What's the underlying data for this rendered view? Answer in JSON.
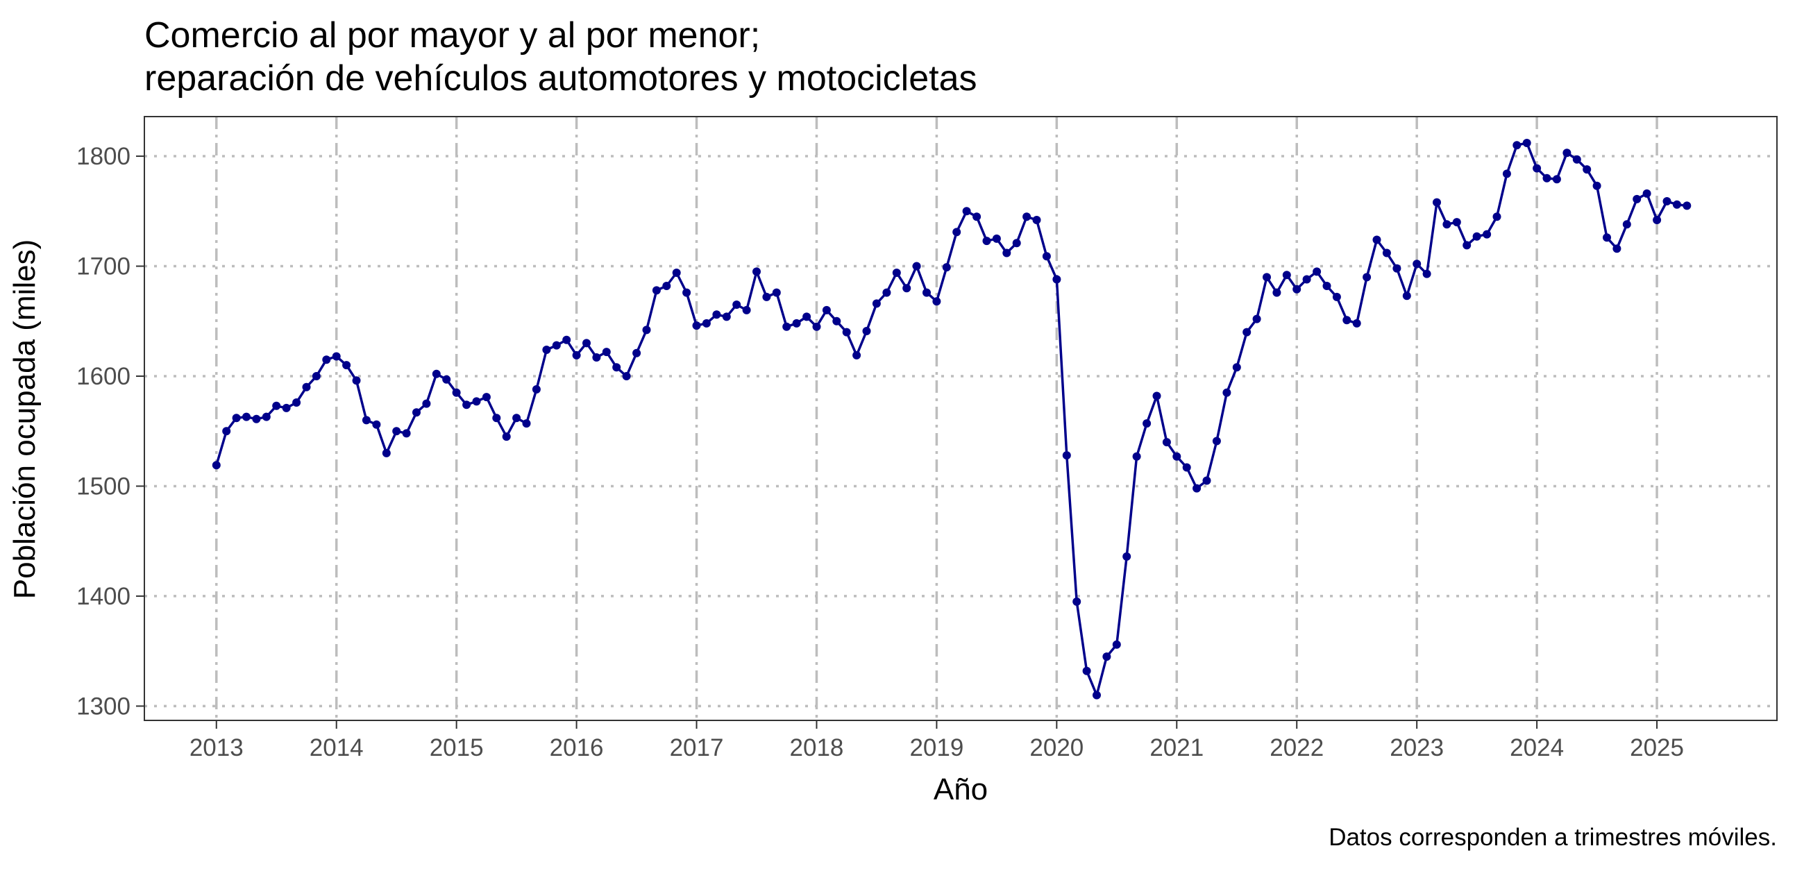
{
  "chart_data": {
    "type": "line",
    "title_line1": "Comercio al por mayor y al por menor;",
    "title_line2": "reparación de vehículos automotores y motocicletas",
    "xlabel": "Año",
    "ylabel": "Población ocupada (miles)",
    "caption": "Datos corresponden a trimestres móviles.",
    "xlim": [
      2012.4,
      2026.0
    ],
    "ylim": [
      1287,
      1836
    ],
    "x_ticks": [
      2013,
      2014,
      2015,
      2016,
      2017,
      2018,
      2019,
      2020,
      2021,
      2022,
      2023,
      2024,
      2025
    ],
    "y_ticks": [
      1300,
      1400,
      1500,
      1600,
      1700,
      1800
    ],
    "grid": true,
    "line_color": "#00008B",
    "series": [
      {
        "start_year": 2013,
        "start_month": 1,
        "values": [
          1519,
          1550,
          1562,
          1563,
          1561,
          1563,
          1573,
          1571,
          1576,
          1590,
          1600,
          1615,
          1618,
          1610,
          1596,
          1560,
          1556,
          1530,
          1550,
          1548,
          1567,
          1575,
          1602,
          1597,
          1585,
          1574,
          1577,
          1581,
          1562,
          1545,
          1562,
          1557,
          1588,
          1624,
          1628,
          1633,
          1619,
          1630,
          1617,
          1622,
          1608,
          1600,
          1621,
          1642,
          1678,
          1682,
          1694,
          1676,
          1646,
          1648,
          1656,
          1654,
          1665,
          1660,
          1695,
          1672,
          1676,
          1645,
          1648,
          1654,
          1645,
          1660,
          1650,
          1640,
          1619,
          1641,
          1666,
          1676,
          1694,
          1680,
          1700,
          1676,
          1668,
          1699,
          1731,
          1750,
          1745,
          1723,
          1725,
          1712,
          1721,
          1745,
          1742,
          1709,
          1688,
          1528,
          1395,
          1332,
          1310,
          1345,
          1356,
          1436,
          1527,
          1557,
          1582,
          1540,
          1527,
          1517,
          1498,
          1505,
          1541,
          1585,
          1608,
          1640,
          1652,
          1690,
          1676,
          1692,
          1679,
          1688,
          1695,
          1682,
          1672,
          1651,
          1648,
          1690,
          1724,
          1712,
          1698,
          1673,
          1702,
          1693,
          1758,
          1738,
          1740,
          1719,
          1727,
          1729,
          1745,
          1784,
          1810,
          1812,
          1789,
          1780,
          1779,
          1803,
          1797,
          1788,
          1773,
          1726,
          1716,
          1738,
          1761,
          1766,
          1742,
          1759,
          1756,
          1755
        ]
      }
    ]
  }
}
